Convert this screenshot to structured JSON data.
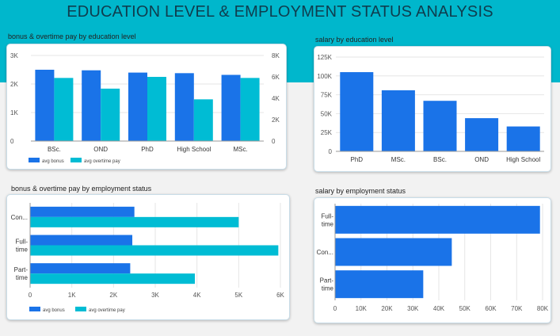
{
  "dashboard": {
    "title": "EDUCATION LEVEL & EMPLOYMENT STATUS ANALYSIS"
  },
  "colors": {
    "banner": "#00b7cc",
    "bonus": "#1a73e8",
    "overtime": "#00bcd4",
    "title_text": "#0f3d4e"
  },
  "chart_data": [
    {
      "id": "c1",
      "type": "bar",
      "title": "bonus & overtime pay by education level",
      "categories": [
        "BSc.",
        "OND",
        "PhD",
        "High School",
        "MSc."
      ],
      "series": [
        {
          "name": "avg bonus",
          "axis": "left",
          "values": [
            2500,
            2480,
            2400,
            2380,
            2320
          ]
        },
        {
          "name": "avg overtime pay",
          "axis": "right",
          "values": [
            5900,
            4900,
            6000,
            3900,
            5900
          ]
        }
      ],
      "y_left": {
        "range": [
          0,
          3000
        ],
        "ticks": [
          "0",
          "1K",
          "2K",
          "3K"
        ]
      },
      "y_right": {
        "range": [
          0,
          8000
        ],
        "ticks": [
          "0",
          "2K",
          "4K",
          "6K",
          "8K"
        ]
      },
      "legend": "bottom-left"
    },
    {
      "id": "c2",
      "type": "bar",
      "title": "salary by education level",
      "categories": [
        "PhD",
        "MSc.",
        "BSc.",
        "OND",
        "High School"
      ],
      "series": [
        {
          "values": [
            105000,
            81000,
            67000,
            44000,
            33000
          ]
        }
      ],
      "ylim": [
        0,
        125000
      ],
      "y_ticks": [
        "0",
        "25K",
        "50K",
        "75K",
        "100K",
        "125K"
      ]
    },
    {
      "id": "c3",
      "type": "bar",
      "orientation": "horizontal",
      "title": "bonus & overtime pay by employment status",
      "categories": [
        "Con...",
        "Full-time",
        "Part-time"
      ],
      "series": [
        {
          "name": "avg bonus",
          "values": [
            2500,
            2450,
            2400
          ]
        },
        {
          "name": "avg overtime pay",
          "values": [
            5000,
            5950,
            3950
          ]
        }
      ],
      "xlim": [
        0,
        6000
      ],
      "x_ticks": [
        "0",
        "1K",
        "2K",
        "3K",
        "4K",
        "5K",
        "6K"
      ],
      "legend": "bottom-left"
    },
    {
      "id": "c4",
      "type": "bar",
      "orientation": "horizontal",
      "title": "salary by employment status",
      "categories": [
        "Full-time",
        "Con...",
        "Part-time"
      ],
      "series": [
        {
          "values": [
            79000,
            45000,
            34000
          ]
        }
      ],
      "xlim": [
        0,
        80000
      ],
      "x_ticks": [
        "0",
        "10K",
        "20K",
        "30K",
        "40K",
        "50K",
        "60K",
        "70K",
        "80K"
      ]
    }
  ]
}
